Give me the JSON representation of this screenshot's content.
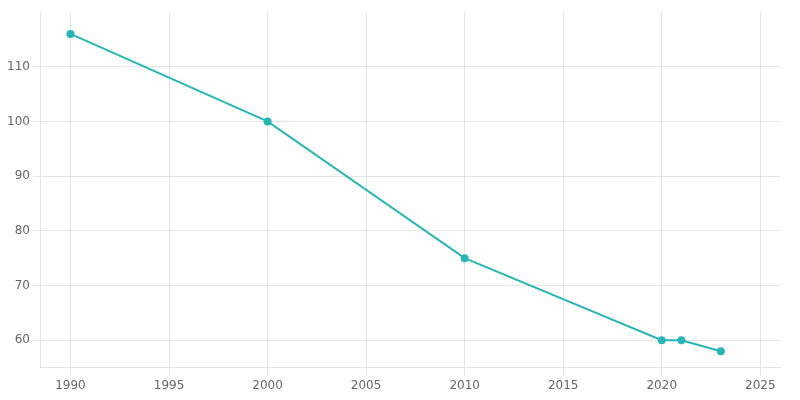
{
  "chart_data": {
    "type": "line",
    "x": [
      1990,
      2000,
      2010,
      2020,
      2021,
      2023
    ],
    "values": [
      116,
      100,
      75,
      60,
      60,
      58
    ],
    "color": "#2ab5b5",
    "marker": "circle",
    "xlim": [
      1988.5,
      2026
    ],
    "ylim": [
      55,
      120
    ],
    "xticks": [
      1990,
      1995,
      2000,
      2005,
      2010,
      2015,
      2020,
      2025
    ],
    "yticks": [
      60,
      70,
      80,
      90,
      100,
      110
    ],
    "grid": true
  }
}
